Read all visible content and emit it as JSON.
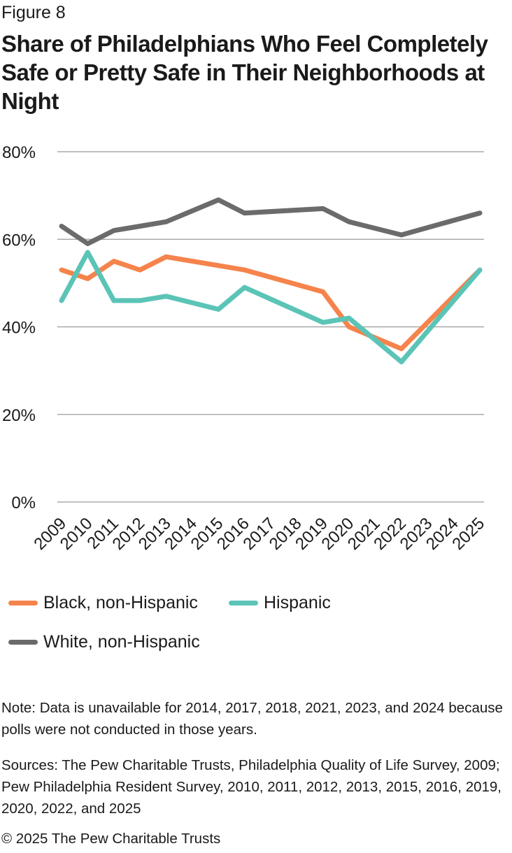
{
  "header": {
    "figure_label": "Figure 8",
    "title": "Share of Philadelphians Who Feel Completely Safe or Pretty Safe in Their Neighborhoods at Night"
  },
  "chart_data": {
    "type": "line",
    "x": [
      "2009",
      "2010",
      "2011",
      "2012",
      "2013",
      "2014",
      "2015",
      "2016",
      "2017",
      "2018",
      "2019",
      "2020",
      "2021",
      "2022",
      "2023",
      "2024",
      "2025"
    ],
    "ylim": [
      0,
      80
    ],
    "yticks": [
      "0%",
      "20%",
      "40%",
      "60%",
      "80%"
    ],
    "ytick_values": [
      0,
      20,
      40,
      60,
      80
    ],
    "grid": true,
    "legend_position": "bottom",
    "series": [
      {
        "name": "Black, non-Hispanic",
        "color": "#f5844c",
        "values": [
          53,
          51,
          55,
          53,
          56,
          null,
          54,
          53,
          null,
          null,
          48,
          40,
          null,
          35,
          null,
          null,
          53
        ]
      },
      {
        "name": "Hispanic",
        "color": "#5bc4b7",
        "values": [
          46,
          57,
          46,
          46,
          47,
          null,
          44,
          49,
          null,
          null,
          41,
          42,
          null,
          32,
          null,
          null,
          53
        ]
      },
      {
        "name": "White, non-Hispanic",
        "color": "#6b6b6b",
        "values": [
          63,
          59,
          62,
          63,
          64,
          null,
          69,
          66,
          null,
          null,
          67,
          64,
          null,
          61,
          null,
          null,
          66
        ]
      }
    ]
  },
  "footer": {
    "note": "Note: Data is unavailable for 2014, 2017, 2018, 2021, 2023, and 2024 because polls were not conducted in those years.",
    "sources": "Sources: The Pew Charitable Trusts, Philadelphia Quality of Life Survey, 2009; Pew Philadelphia Resident Survey, 2010, 2011, 2012, 2013, 2015, 2016, 2019, 2020, 2022, and 2025",
    "copyright": "© 2025 The Pew Charitable Trusts"
  }
}
